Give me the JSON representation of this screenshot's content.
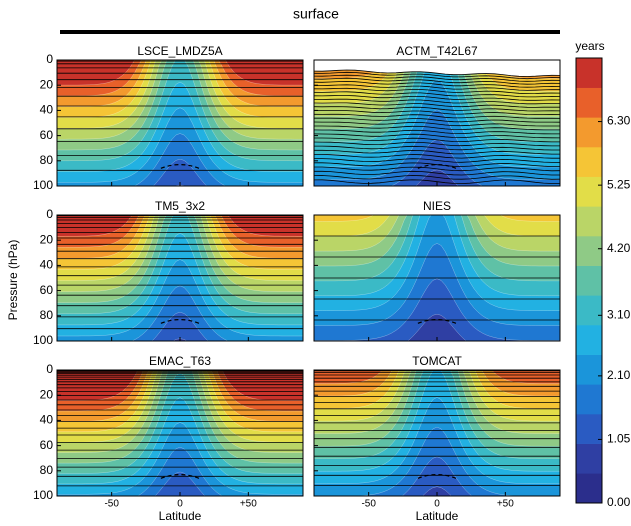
{
  "chart_data": {
    "type": "contour",
    "title": "surface",
    "ylabel": "Pressure (hPa)",
    "xlabel": "Latitude",
    "xlim": [
      -90,
      90
    ],
    "xticks": [
      -50,
      0,
      {
        "value": 50,
        "label": "+50"
      }
    ],
    "ylim": [
      100,
      0
    ],
    "yticks": [
      0,
      20,
      40,
      60,
      80,
      100
    ],
    "panels": [
      {
        "title": "LSCE_LMDZ5A"
      },
      {
        "title": "ACTM_T42L67"
      },
      {
        "title": "TM5_3x2"
      },
      {
        "title": "NIES"
      },
      {
        "title": "EMAC_T63"
      },
      {
        "title": "TOMCAT"
      }
    ],
    "colorbar": {
      "label": "years",
      "lim": [
        0,
        7.35
      ],
      "colors": [
        "#2b2e8c",
        "#2f3fa3",
        "#2a5bc2",
        "#1f78d2",
        "#1b95da",
        "#22b1e2",
        "#3bbac6",
        "#5fc1a6",
        "#8fca86",
        "#bad567",
        "#e2dd48",
        "#f5c536",
        "#f39a2e",
        "#e8602a",
        "#c8322a"
      ],
      "ticks": [
        {
          "value": 0,
          "label": "0.00"
        },
        {
          "value": 1.05,
          "label": "1.05"
        },
        {
          "value": 2.1,
          "label": "2.10"
        },
        {
          "value": 3.1,
          "label": "3.10"
        },
        {
          "value": 4.2,
          "label": "4.20"
        },
        {
          "value": 5.25,
          "label": "5.25"
        },
        {
          "value": 6.3,
          "label": "6.30"
        }
      ]
    }
  }
}
